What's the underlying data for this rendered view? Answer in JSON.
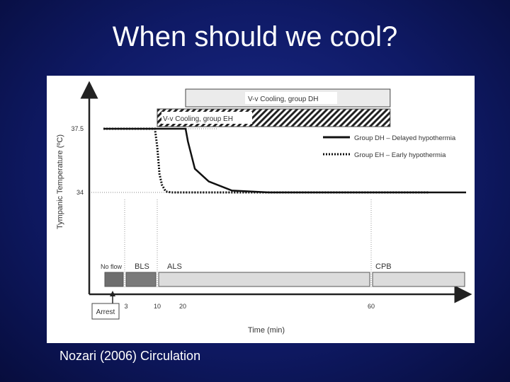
{
  "slide": {
    "title": "When should we cool?",
    "citation": "Nozari (2006) Circulation"
  },
  "chart_data": {
    "type": "line",
    "title": "",
    "xlabel": "Time (min)",
    "ylabel": "Tympanic Temperature (ºC)",
    "x_ticks": [
      "3",
      "10",
      "20",
      "60"
    ],
    "y_ticks": [
      "37.5",
      "34"
    ],
    "series": [
      {
        "name": "Group DH – Delayed hypothermia",
        "style": "solid",
        "points": [
          [
            0,
            37.5
          ],
          [
            11,
            37.5
          ],
          [
            20,
            37.5
          ],
          [
            20.5,
            36.8
          ],
          [
            22,
            35.3
          ],
          [
            25,
            34.6
          ],
          [
            30,
            34.1
          ],
          [
            38,
            34.0
          ],
          [
            50,
            34.0
          ],
          [
            60,
            34.0
          ],
          [
            80,
            34.0
          ]
        ]
      },
      {
        "name": "Group EH – Early hypothermia",
        "style": "dotted",
        "points": [
          [
            0,
            37.5
          ],
          [
            9.5,
            37.5
          ],
          [
            10,
            36.5
          ],
          [
            10.8,
            35.0
          ],
          [
            11.7,
            34.4
          ],
          [
            13,
            34.05
          ],
          [
            15,
            34.0
          ],
          [
            60,
            34.0
          ],
          [
            72,
            34.0
          ]
        ]
      }
    ],
    "cooling_bars": [
      {
        "label": "V-v Cooling, group DH",
        "pattern": "plain",
        "start": 20,
        "end": 64
      },
      {
        "label": "V-v Cooling, group EH",
        "pattern": "hatched",
        "start": 10,
        "end": 64
      }
    ],
    "phases": [
      {
        "label": "No flow",
        "start": 0,
        "end": 3,
        "color": "#6e6e6e"
      },
      {
        "label": "BLS",
        "start": 3,
        "end": 10,
        "color": "#7a7a7a"
      },
      {
        "label": "ALS",
        "start": 10,
        "end": 60,
        "color": "#dcdcdc"
      },
      {
        "label": "CPB",
        "start": 60,
        "end": 80,
        "color": "#dcdcdc"
      }
    ],
    "annotations": [
      "Arrest"
    ],
    "legend_position": "top-right",
    "grid": false
  }
}
